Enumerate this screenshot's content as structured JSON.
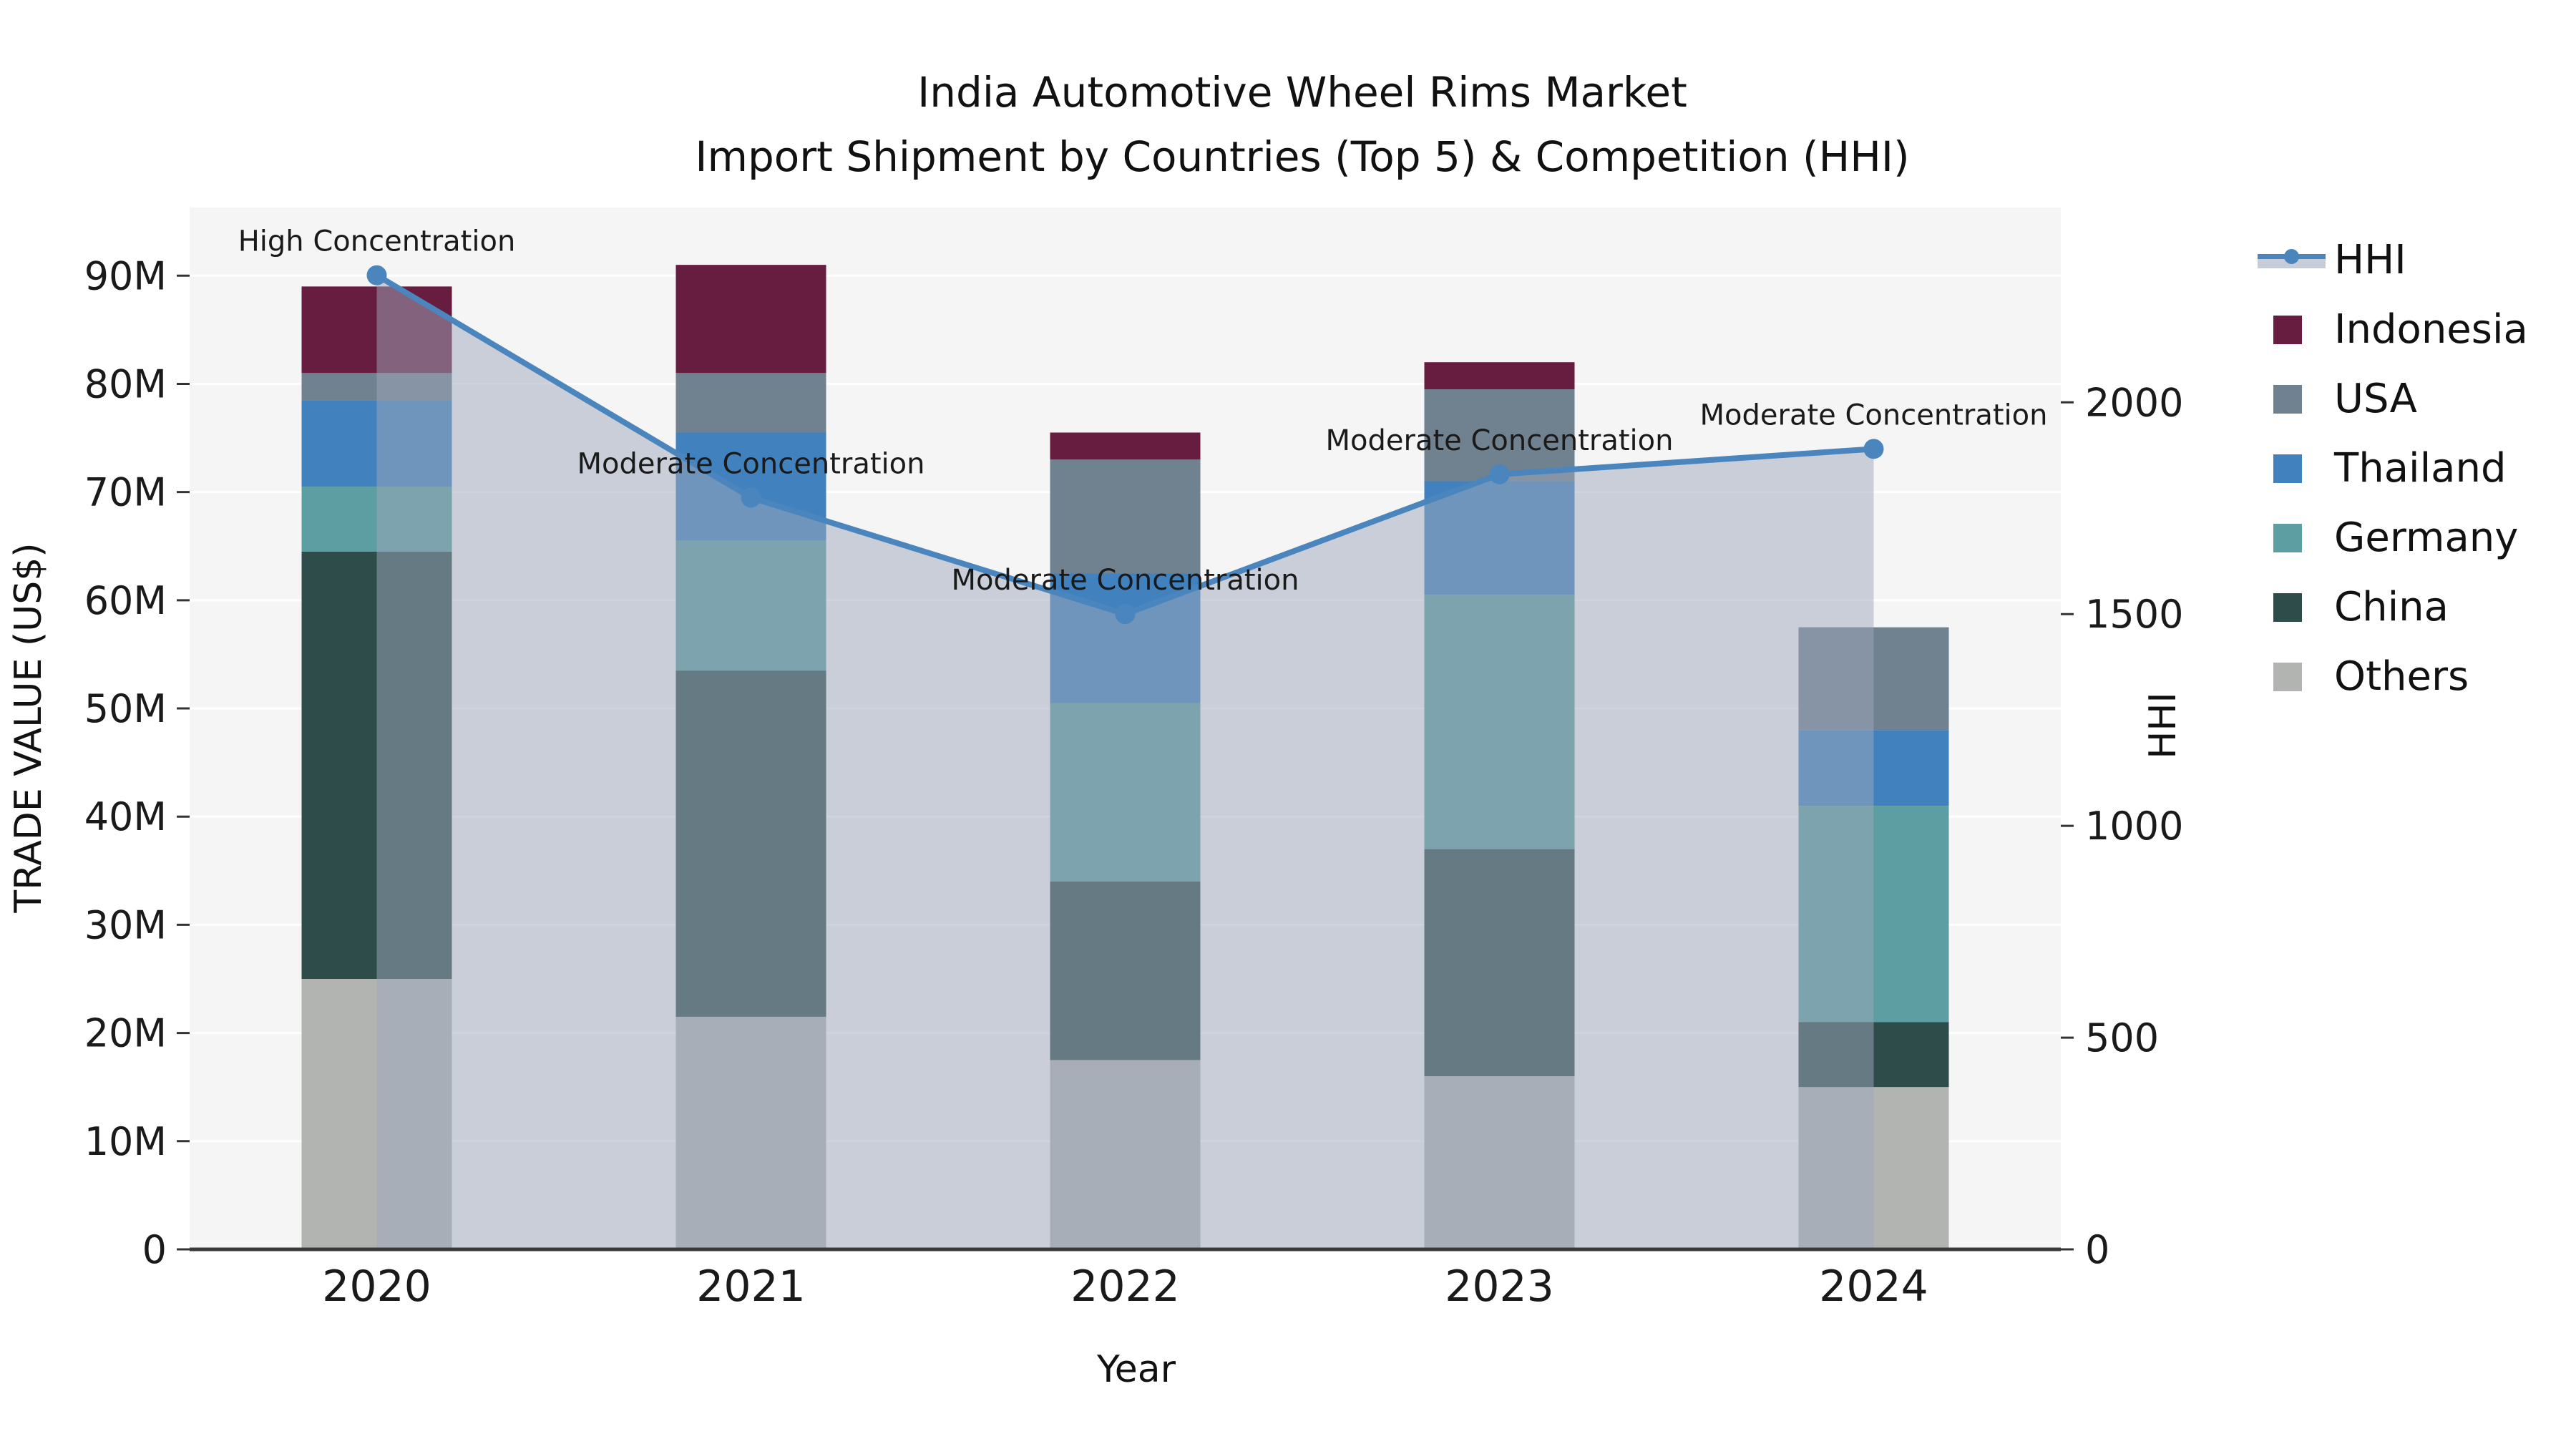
{
  "title": {
    "line1": "India Automotive Wheel Rims Market",
    "line2": "Import Shipment by Countries (Top 5) & Competition (HHI)"
  },
  "chart_data": {
    "type": "combo-stacked-bar-and-line",
    "x": {
      "label": "Year",
      "categories": [
        "2020",
        "2021",
        "2022",
        "2023",
        "2024"
      ]
    },
    "y_left": {
      "label": "TRADE VALUE (US$)",
      "min": 0,
      "max": 96.3,
      "unit": "M",
      "tick_values": [
        0,
        10,
        20,
        30,
        40,
        50,
        60,
        70,
        80,
        90
      ],
      "tick_labels": [
        "0",
        "10M",
        "20M",
        "30M",
        "40M",
        "50M",
        "60M",
        "70M",
        "80M",
        "90M"
      ],
      "grid": true
    },
    "y_right": {
      "label": "HHI",
      "min": 0,
      "max": 2460,
      "tick_values": [
        0,
        500,
        1000,
        1500,
        2000
      ],
      "tick_labels": [
        "0",
        "500",
        "1000",
        "1500",
        "2000"
      ]
    },
    "bar_series": [
      {
        "name": "Others",
        "color": "#b2b4b2",
        "values": [
          25,
          21.5,
          17.5,
          16,
          15
        ]
      },
      {
        "name": "China",
        "color": "#2e4c4a",
        "values": [
          39.5,
          32,
          16.5,
          21,
          6
        ]
      },
      {
        "name": "Germany",
        "color": "#5c9ea1",
        "values": [
          6,
          12,
          16.5,
          23.5,
          20
        ]
      },
      {
        "name": "Thailand",
        "color": "#4182be",
        "values": [
          8,
          10,
          12,
          10.5,
          7
        ]
      },
      {
        "name": "USA",
        "color": "#70818f",
        "values": [
          2.5,
          5.5,
          10.5,
          8.5,
          9.5
        ]
      },
      {
        "name": "Indonesia",
        "color": "#671d3f",
        "values": [
          8,
          10,
          2.5,
          2.5,
          0
        ]
      }
    ],
    "bar_totals": [
      89,
      91,
      75.5,
      82,
      57.5
    ],
    "line_series": {
      "name": "HHI",
      "axis": "right",
      "color": "#4a86bd",
      "marker": "circle",
      "area_fill": "rgba(158,168,188,0.5)",
      "values": [
        2300,
        1775,
        1500,
        1830,
        1890
      ]
    },
    "annotations": [
      {
        "category": "2020",
        "text": "High Concentration"
      },
      {
        "category": "2021",
        "text": "Moderate Concentration"
      },
      {
        "category": "2022",
        "text": "Moderate Concentration"
      },
      {
        "category": "2023",
        "text": "Moderate Concentration"
      },
      {
        "category": "2024",
        "text": "Moderate Concentration"
      }
    ],
    "legend": {
      "position": "right",
      "entries": [
        {
          "label": "HHI",
          "type": "line",
          "color": "#4a86bd",
          "band_color": "#c6cdd9"
        },
        {
          "label": "Indonesia",
          "type": "patch",
          "color": "#671d3f"
        },
        {
          "label": "USA",
          "type": "patch",
          "color": "#70818f"
        },
        {
          "label": "Thailand",
          "type": "patch",
          "color": "#4182be"
        },
        {
          "label": "Germany",
          "type": "patch",
          "color": "#5c9ea1"
        },
        {
          "label": "China",
          "type": "patch",
          "color": "#2e4c4a"
        },
        {
          "label": "Others",
          "type": "patch",
          "color": "#b2b4b2"
        }
      ]
    },
    "style": {
      "plot_background": "#f5f5f5",
      "grid_color": "#ffffff",
      "spine_color": "#3a3a3a",
      "tick_color": "#333333",
      "text_color": "#1a1a1a"
    }
  }
}
